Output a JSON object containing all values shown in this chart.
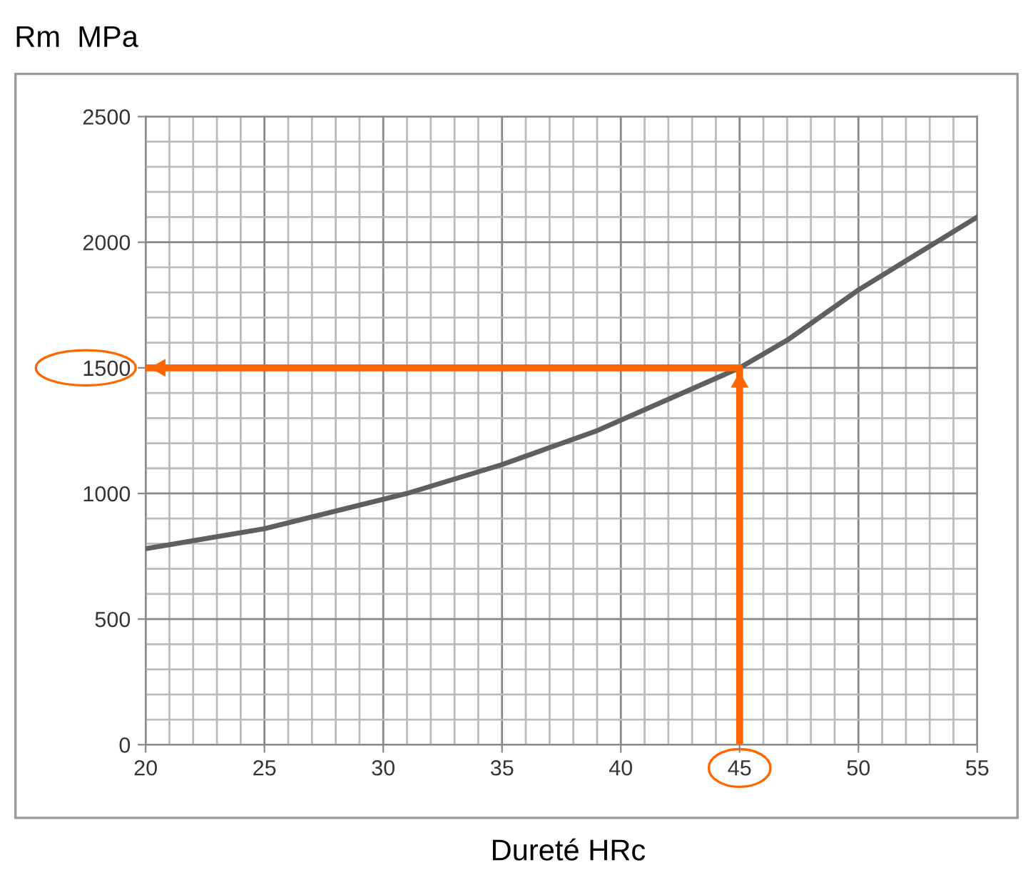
{
  "chart_data": {
    "type": "line",
    "xlabel": "Dureté HRc",
    "ylabel": "Rm  MPa",
    "series": [
      {
        "color": "#5f5f5f",
        "x": [
          20,
          25,
          31,
          35,
          39,
          45,
          47,
          50,
          55
        ],
        "values": [
          780,
          860,
          1000,
          1115,
          1250,
          1500,
          1610,
          1810,
          2100
        ]
      },
      {
        "color": "#ff6600",
        "x": [
          20,
          45,
          45
        ],
        "values": [
          1500,
          1500,
          0
        ]
      }
    ],
    "xlim": [
      20,
      55
    ],
    "xticks": [
      20,
      25,
      30,
      35,
      40,
      45,
      50,
      55
    ],
    "ylim": [
      0,
      2500
    ],
    "yticks": [
      0,
      500,
      1000,
      1500,
      2000,
      2500
    ],
    "grid": true,
    "legend": false,
    "marker": "none",
    "line_style": "solid"
  }
}
